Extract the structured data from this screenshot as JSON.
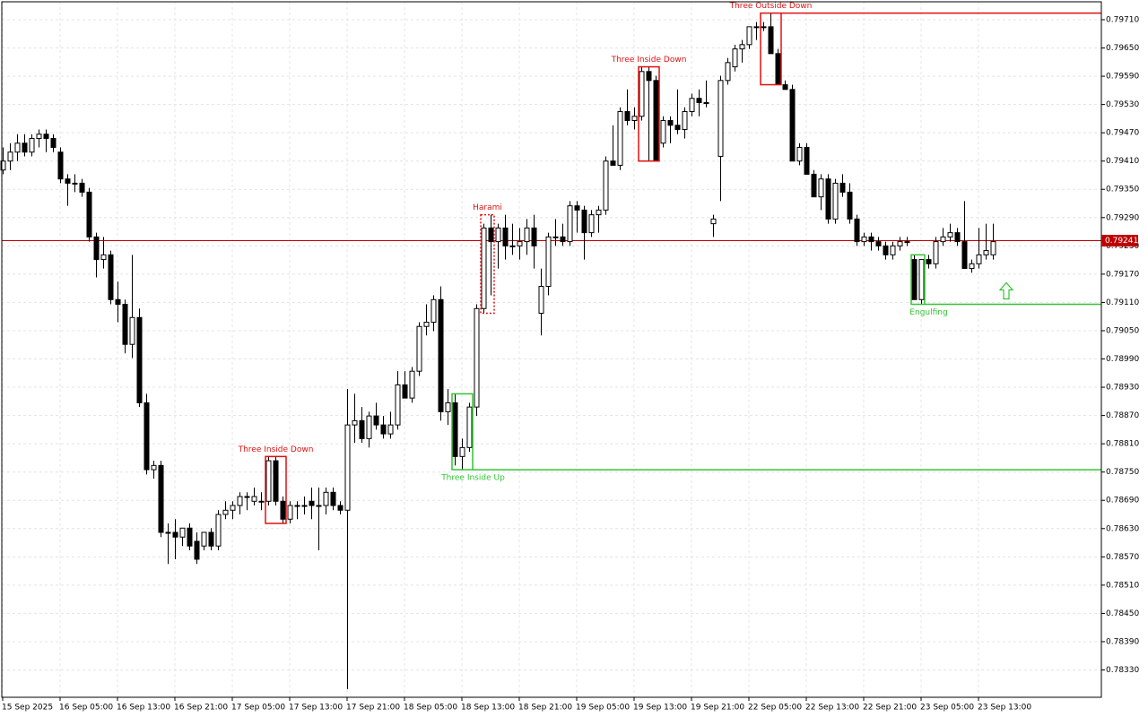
{
  "chart_data": {
    "type": "candlestick",
    "up_color": "#ffffff",
    "down_color": "#000000",
    "outline_color": "#000000",
    "grid": true,
    "ylim": [
      0.78272,
      0.79748
    ],
    "yticks": [
      {
        "value": 0.7971,
        "label": "0.79710"
      },
      {
        "value": 0.7965,
        "label": "0.79650"
      },
      {
        "value": 0.7959,
        "label": "0.79590"
      },
      {
        "value": 0.7953,
        "label": "0.79530"
      },
      {
        "value": 0.7947,
        "label": "0.79470"
      },
      {
        "value": 0.7941,
        "label": "0.79410"
      },
      {
        "value": 0.7935,
        "label": "0.79350"
      },
      {
        "value": 0.7929,
        "label": "0.79290"
      },
      {
        "value": 0.7923,
        "label": "0.79230"
      },
      {
        "value": 0.7917,
        "label": "0.79170"
      },
      {
        "value": 0.7911,
        "label": "0.79110"
      },
      {
        "value": 0.7905,
        "label": "0.79050"
      },
      {
        "value": 0.7899,
        "label": "0.78990"
      },
      {
        "value": 0.7893,
        "label": "0.78930"
      },
      {
        "value": 0.7887,
        "label": "0.78870"
      },
      {
        "value": 0.7881,
        "label": "0.78810"
      },
      {
        "value": 0.7875,
        "label": "0.78750"
      },
      {
        "value": 0.7869,
        "label": "0.78690"
      },
      {
        "value": 0.7863,
        "label": "0.78630"
      },
      {
        "value": 0.7857,
        "label": "0.78570"
      },
      {
        "value": 0.7851,
        "label": "0.78510"
      },
      {
        "value": 0.7845,
        "label": "0.78450"
      },
      {
        "value": 0.7839,
        "label": "0.78390"
      },
      {
        "value": 0.7833,
        "label": "0.78330"
      }
    ],
    "price_line": {
      "value": 0.79241,
      "color": "#c00000"
    },
    "categories": [
      "15 Sep 2025",
      null,
      null,
      null,
      null,
      null,
      null,
      null,
      "16 Sep 05:00",
      null,
      null,
      null,
      null,
      null,
      null,
      null,
      "16 Sep 13:00",
      null,
      null,
      null,
      null,
      null,
      null,
      null,
      "16 Sep 21:00",
      null,
      null,
      null,
      null,
      null,
      null,
      null,
      "17 Sep 05:00",
      null,
      null,
      null,
      null,
      null,
      null,
      null,
      "17 Sep 13:00",
      null,
      null,
      null,
      null,
      null,
      null,
      null,
      "17 Sep 21:00",
      null,
      null,
      null,
      null,
      null,
      null,
      null,
      "18 Sep 05:00",
      null,
      null,
      null,
      null,
      null,
      null,
      null,
      "18 Sep 13:00",
      null,
      null,
      null,
      null,
      null,
      null,
      null,
      "18 Sep 21:00",
      null,
      null,
      null,
      null,
      null,
      null,
      null,
      "19 Sep 05:00",
      null,
      null,
      null,
      null,
      null,
      null,
      null,
      "19 Sep 13:00",
      null,
      null,
      null,
      null,
      null,
      null,
      null,
      "19 Sep 21:00",
      null,
      null,
      null,
      null,
      null,
      null,
      null,
      "22 Sep 05:00",
      null,
      null,
      null,
      null,
      null,
      null,
      null,
      "22 Sep 13:00",
      null,
      null,
      null,
      null,
      null,
      null,
      null,
      "22 Sep 21:00",
      null,
      null,
      null,
      null,
      null,
      null,
      null,
      "23 Sep 05:00",
      null,
      null,
      null,
      null,
      null,
      null,
      null,
      "23 Sep 13:00",
      null,
      null
    ],
    "ohlc": [
      [
        0.79391,
        0.79439,
        0.79382,
        0.7941
      ],
      [
        0.7941,
        0.79448,
        0.79391,
        0.79429
      ],
      [
        0.79429,
        0.79467,
        0.7941,
        0.79448
      ],
      [
        0.79448,
        0.79467,
        0.7942,
        0.79429
      ],
      [
        0.79429,
        0.79467,
        0.7942,
        0.79458
      ],
      [
        0.79458,
        0.79477,
        0.79439,
        0.79467
      ],
      [
        0.79467,
        0.79477,
        0.79429,
        0.79458
      ],
      [
        0.79458,
        0.79467,
        0.79429,
        0.79439
      ],
      [
        0.79429,
        0.79439,
        0.79363,
        0.79372
      ],
      [
        0.79372,
        0.79382,
        0.79315,
        0.79363
      ],
      [
        0.79363,
        0.79382,
        0.79344,
        0.79363
      ],
      [
        0.79363,
        0.79372,
        0.79334,
        0.79344
      ],
      [
        0.79344,
        0.79353,
        0.79239,
        0.79249
      ],
      [
        0.79249,
        0.79258,
        0.79163,
        0.79201
      ],
      [
        0.79201,
        0.79249,
        0.79182,
        0.79211
      ],
      [
        0.79211,
        0.7922,
        0.79106,
        0.79116
      ],
      [
        0.79116,
        0.79154,
        0.79068,
        0.79106
      ],
      [
        0.79106,
        0.79116,
        0.79002,
        0.79021
      ],
      [
        0.79021,
        0.79211,
        0.78992,
        0.79078
      ],
      [
        0.79078,
        0.79097,
        0.78888,
        0.78897
      ],
      [
        0.78897,
        0.78916,
        0.78745,
        0.78755
      ],
      [
        0.78755,
        0.78774,
        0.78736,
        0.78764
      ],
      [
        0.78764,
        0.78774,
        0.78612,
        0.78622
      ],
      [
        0.78622,
        0.78641,
        0.78555,
        0.78622
      ],
      [
        0.78622,
        0.7865,
        0.78565,
        0.78612
      ],
      [
        0.78612,
        0.78631,
        0.78593,
        0.78631
      ],
      [
        0.78631,
        0.78641,
        0.78584,
        0.78593
      ],
      [
        0.78603,
        0.78622,
        0.78555,
        0.78565
      ],
      [
        0.78593,
        0.78622,
        0.78584,
        0.78622
      ],
      [
        0.78622,
        0.78631,
        0.78584,
        0.78593
      ],
      [
        0.78593,
        0.78669,
        0.78584,
        0.7866
      ],
      [
        0.7866,
        0.78688,
        0.7865,
        0.78669
      ],
      [
        0.78669,
        0.78688,
        0.7865,
        0.78679
      ],
      [
        0.78679,
        0.78707,
        0.7866,
        0.78698
      ],
      [
        0.78698,
        0.78707,
        0.78669,
        0.78698
      ],
      [
        0.78688,
        0.78717,
        0.78679,
        0.78698
      ],
      [
        0.78688,
        0.78707,
        0.78669,
        0.78688
      ],
      [
        0.78688,
        0.78783,
        0.78679,
        0.78774
      ],
      [
        0.78774,
        0.78783,
        0.78679,
        0.78688
      ],
      [
        0.78688,
        0.78698,
        0.78641,
        0.7865
      ],
      [
        0.7865,
        0.78688,
        0.78641,
        0.78679
      ],
      [
        0.78679,
        0.78688,
        0.7865,
        0.78679
      ],
      [
        0.78679,
        0.78698,
        0.7866,
        0.78679
      ],
      [
        0.78688,
        0.78717,
        0.7865,
        0.78679
      ],
      [
        0.78679,
        0.78717,
        0.78584,
        0.78679
      ],
      [
        0.78679,
        0.78717,
        0.7866,
        0.78707
      ],
      [
        0.78707,
        0.78717,
        0.78669,
        0.78679
      ],
      [
        0.78679,
        0.78688,
        0.7866,
        0.78669
      ],
      [
        0.78669,
        0.78926,
        0.78289,
        0.7885
      ],
      [
        0.7885,
        0.78916,
        0.78812,
        0.78859
      ],
      [
        0.78859,
        0.78888,
        0.78812,
        0.78821
      ],
      [
        0.78821,
        0.78878,
        0.78802,
        0.78869
      ],
      [
        0.78869,
        0.78897,
        0.7884,
        0.7885
      ],
      [
        0.7885,
        0.78869,
        0.78821,
        0.78831
      ],
      [
        0.78831,
        0.78878,
        0.78821,
        0.7885
      ],
      [
        0.7885,
        0.78964,
        0.7884,
        0.78935
      ],
      [
        0.78935,
        0.78964,
        0.78907,
        0.78907
      ],
      [
        0.78907,
        0.78973,
        0.78897,
        0.78964
      ],
      [
        0.78964,
        0.79068,
        0.78954,
        0.79059
      ],
      [
        0.79059,
        0.79106,
        0.7904,
        0.79068
      ],
      [
        0.79068,
        0.79125,
        0.79049,
        0.79116
      ],
      [
        0.79116,
        0.79144,
        0.78859,
        0.78878
      ],
      [
        0.78878,
        0.78926,
        0.7885,
        0.78897
      ],
      [
        0.78897,
        0.78916,
        0.78764,
        0.78783
      ],
      [
        0.78783,
        0.78821,
        0.78755,
        0.78802
      ],
      [
        0.78802,
        0.78897,
        0.78793,
        0.78888
      ],
      [
        0.78888,
        0.79106,
        0.78869,
        0.79097
      ],
      [
        0.79097,
        0.79277,
        0.79087,
        0.79268
      ],
      [
        0.79268,
        0.79296,
        0.79125,
        0.79239
      ],
      [
        0.79239,
        0.79277,
        0.79182,
        0.79268
      ],
      [
        0.79268,
        0.79296,
        0.79201,
        0.7923
      ],
      [
        0.7923,
        0.79277,
        0.79211,
        0.7923
      ],
      [
        0.7923,
        0.79268,
        0.79201,
        0.79239
      ],
      [
        0.79239,
        0.79287,
        0.79211,
        0.79268
      ],
      [
        0.79268,
        0.79296,
        0.79182,
        0.7923
      ],
      [
        0.79087,
        0.79182,
        0.7904,
        0.79144
      ],
      [
        0.79144,
        0.79258,
        0.79125,
        0.79249
      ],
      [
        0.79249,
        0.79287,
        0.7923,
        0.79249
      ],
      [
        0.79249,
        0.79277,
        0.7923,
        0.79239
      ],
      [
        0.79239,
        0.79325,
        0.7923,
        0.79315
      ],
      [
        0.79315,
        0.79325,
        0.79258,
        0.79306
      ],
      [
        0.79306,
        0.79315,
        0.79201,
        0.79258
      ],
      [
        0.79258,
        0.79306,
        0.79249,
        0.79296
      ],
      [
        0.79296,
        0.79315,
        0.79258,
        0.79306
      ],
      [
        0.79306,
        0.7942,
        0.79296,
        0.7941
      ],
      [
        0.7941,
        0.79486,
        0.79401,
        0.79401
      ],
      [
        0.79401,
        0.79524,
        0.79391,
        0.79515
      ],
      [
        0.79515,
        0.79562,
        0.79486,
        0.79496
      ],
      [
        0.79496,
        0.79524,
        0.79477,
        0.79505
      ],
      [
        0.79505,
        0.7961,
        0.79496,
        0.796
      ],
      [
        0.796,
        0.7961,
        0.7941,
        0.79581
      ],
      [
        0.79581,
        0.79591,
        0.7941,
        0.7941
      ],
      [
        0.79448,
        0.79505,
        0.79439,
        0.79496
      ],
      [
        0.79496,
        0.79505,
        0.79448,
        0.79486
      ],
      [
        0.79486,
        0.79562,
        0.79467,
        0.79477
      ],
      [
        0.79477,
        0.79524,
        0.79458,
        0.79515
      ],
      [
        0.79515,
        0.79553,
        0.79505,
        0.79543
      ],
      [
        0.79543,
        0.79562,
        0.79505,
        0.79534
      ],
      [
        0.79534,
        0.79581,
        0.79524,
        0.79534
      ],
      [
        0.79277,
        0.79296,
        0.79249,
        0.79287
      ],
      [
        0.7942,
        0.79591,
        0.79325,
        0.79581
      ],
      [
        0.79581,
        0.79629,
        0.79572,
        0.79619
      ],
      [
        0.7961,
        0.79657,
        0.796,
        0.79648
      ],
      [
        0.79648,
        0.79667,
        0.79619,
        0.79657
      ],
      [
        0.79657,
        0.79695,
        0.79648,
        0.79695
      ],
      [
        0.79695,
        0.79705,
        0.79667,
        0.79695
      ],
      [
        0.79695,
        0.79705,
        0.79686,
        0.79695
      ],
      [
        0.79695,
        0.79724,
        0.79638,
        0.79638
      ],
      [
        0.79638,
        0.79648,
        0.79572,
        0.79572
      ],
      [
        0.79572,
        0.79581,
        0.79562,
        0.79562
      ],
      [
        0.79562,
        0.79572,
        0.7941,
        0.7941
      ],
      [
        0.7941,
        0.79448,
        0.79401,
        0.79439
      ],
      [
        0.79439,
        0.79448,
        0.79382,
        0.79382
      ],
      [
        0.79382,
        0.79391,
        0.79334,
        0.79334
      ],
      [
        0.79334,
        0.79382,
        0.79306,
        0.79372
      ],
      [
        0.79372,
        0.79382,
        0.79277,
        0.79287
      ],
      [
        0.79287,
        0.79372,
        0.79277,
        0.79363
      ],
      [
        0.79363,
        0.79382,
        0.79334,
        0.79344
      ],
      [
        0.79344,
        0.79363,
        0.79277,
        0.79287
      ],
      [
        0.79287,
        0.79296,
        0.7923,
        0.79239
      ],
      [
        0.79239,
        0.79258,
        0.7923,
        0.79249
      ],
      [
        0.79249,
        0.79258,
        0.7922,
        0.79239
      ],
      [
        0.79239,
        0.79249,
        0.7922,
        0.7923
      ],
      [
        0.7923,
        0.79239,
        0.79201,
        0.79211
      ],
      [
        0.79211,
        0.79239,
        0.79201,
        0.7923
      ],
      [
        0.7923,
        0.79249,
        0.7922,
        0.79239
      ],
      [
        0.79239,
        0.79249,
        0.7923,
        0.79239
      ],
      [
        0.79201,
        0.79211,
        0.79116,
        0.79116
      ],
      [
        0.79116,
        0.79201,
        0.79106,
        0.79201
      ],
      [
        0.79201,
        0.79211,
        0.79182,
        0.79192
      ],
      [
        0.79192,
        0.79249,
        0.79182,
        0.79239
      ],
      [
        0.79239,
        0.79268,
        0.7923,
        0.79249
      ],
      [
        0.79249,
        0.79277,
        0.79239,
        0.79258
      ],
      [
        0.79258,
        0.79268,
        0.7923,
        0.79239
      ],
      [
        0.79239,
        0.79325,
        0.79182,
        0.79182
      ],
      [
        0.79182,
        0.79201,
        0.79173,
        0.79192
      ],
      [
        0.79192,
        0.79268,
        0.79182,
        0.79211
      ],
      [
        0.79211,
        0.79277,
        0.79201,
        0.7922
      ],
      [
        0.79211,
        0.79277,
        0.79201,
        0.79239
      ]
    ],
    "patterns": [
      {
        "label": "Three Inside Down",
        "color": "#e01010",
        "candles": [
          37,
          39
        ]
      },
      {
        "label": "Harami",
        "color": "#e01010",
        "candles": [
          67,
          68
        ],
        "style": "dashed"
      },
      {
        "label": "Three Inside Up",
        "color": "#33c433",
        "candles": [
          63,
          65
        ],
        "line": "low"
      },
      {
        "label": "Three Inside Down",
        "color": "#e01010",
        "candles": [
          89,
          91
        ]
      },
      {
        "label": "Three Outside Down",
        "color": "#e01010",
        "candles": [
          106,
          108
        ],
        "line": "high"
      },
      {
        "label": "Engulfing",
        "color": "#33c433",
        "candles": [
          127,
          128
        ],
        "line": "low",
        "arrow": "up"
      }
    ]
  }
}
